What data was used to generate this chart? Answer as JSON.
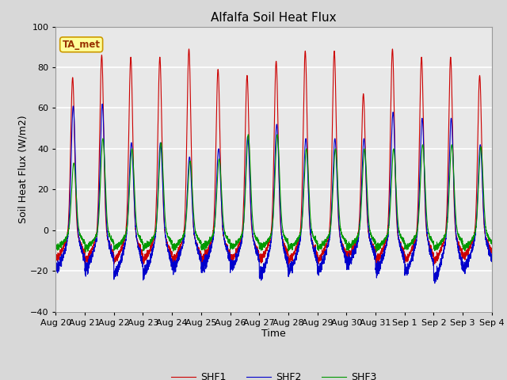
{
  "title": "Alfalfa Soil Heat Flux",
  "xlabel": "Time",
  "ylabel": "Soil Heat Flux (W/m2)",
  "ylim": [
    -40,
    100
  ],
  "yticks": [
    -40,
    -20,
    0,
    20,
    40,
    60,
    80,
    100
  ],
  "date_labels": [
    "Aug 20",
    "Aug 21",
    "Aug 22",
    "Aug 23",
    "Aug 24",
    "Aug 25",
    "Aug 26",
    "Aug 27",
    "Aug 28",
    "Aug 29",
    "Aug 30",
    "Aug 31",
    "Sep 1",
    "Sep 2",
    "Sep 3",
    "Sep 4"
  ],
  "colors": {
    "SHF1": "#cc0000",
    "SHF2": "#0000cc",
    "SHF3": "#009900"
  },
  "annotation_text": "TA_met",
  "annotation_fg": "#993300",
  "annotation_bg": "#ffff99",
  "annotation_edge": "#cc9900",
  "fig_bg": "#d8d8d8",
  "plot_bg": "#e8e8e8",
  "grid_color": "#ffffff",
  "n_days": 15,
  "ppd": 288,
  "peaks1": [
    75,
    86,
    85,
    85,
    89,
    79,
    76,
    83,
    88,
    88,
    67,
    89,
    85,
    85,
    76
  ],
  "peaks2": [
    61,
    62,
    43,
    43,
    36,
    40,
    46,
    52,
    45,
    45,
    45,
    58,
    55,
    55,
    42
  ],
  "peaks3": [
    33,
    45,
    40,
    43,
    34,
    35,
    47,
    47,
    40,
    40,
    40,
    40,
    42,
    42,
    41
  ],
  "night1": [
    -15,
    -16,
    -16,
    -16,
    -16,
    -16,
    -16,
    -16,
    -16,
    -16,
    -14,
    -16,
    -16,
    -16,
    -14
  ],
  "night2": [
    -20,
    -20,
    -23,
    -23,
    -20,
    -20,
    -20,
    -24,
    -21,
    -21,
    -18,
    -21,
    -22,
    -25,
    -20
  ],
  "night3": [
    -9,
    -9,
    -9,
    -9,
    -9,
    -9,
    -9,
    -9,
    -9,
    -9,
    -9,
    -9,
    -9,
    -9,
    -9
  ]
}
